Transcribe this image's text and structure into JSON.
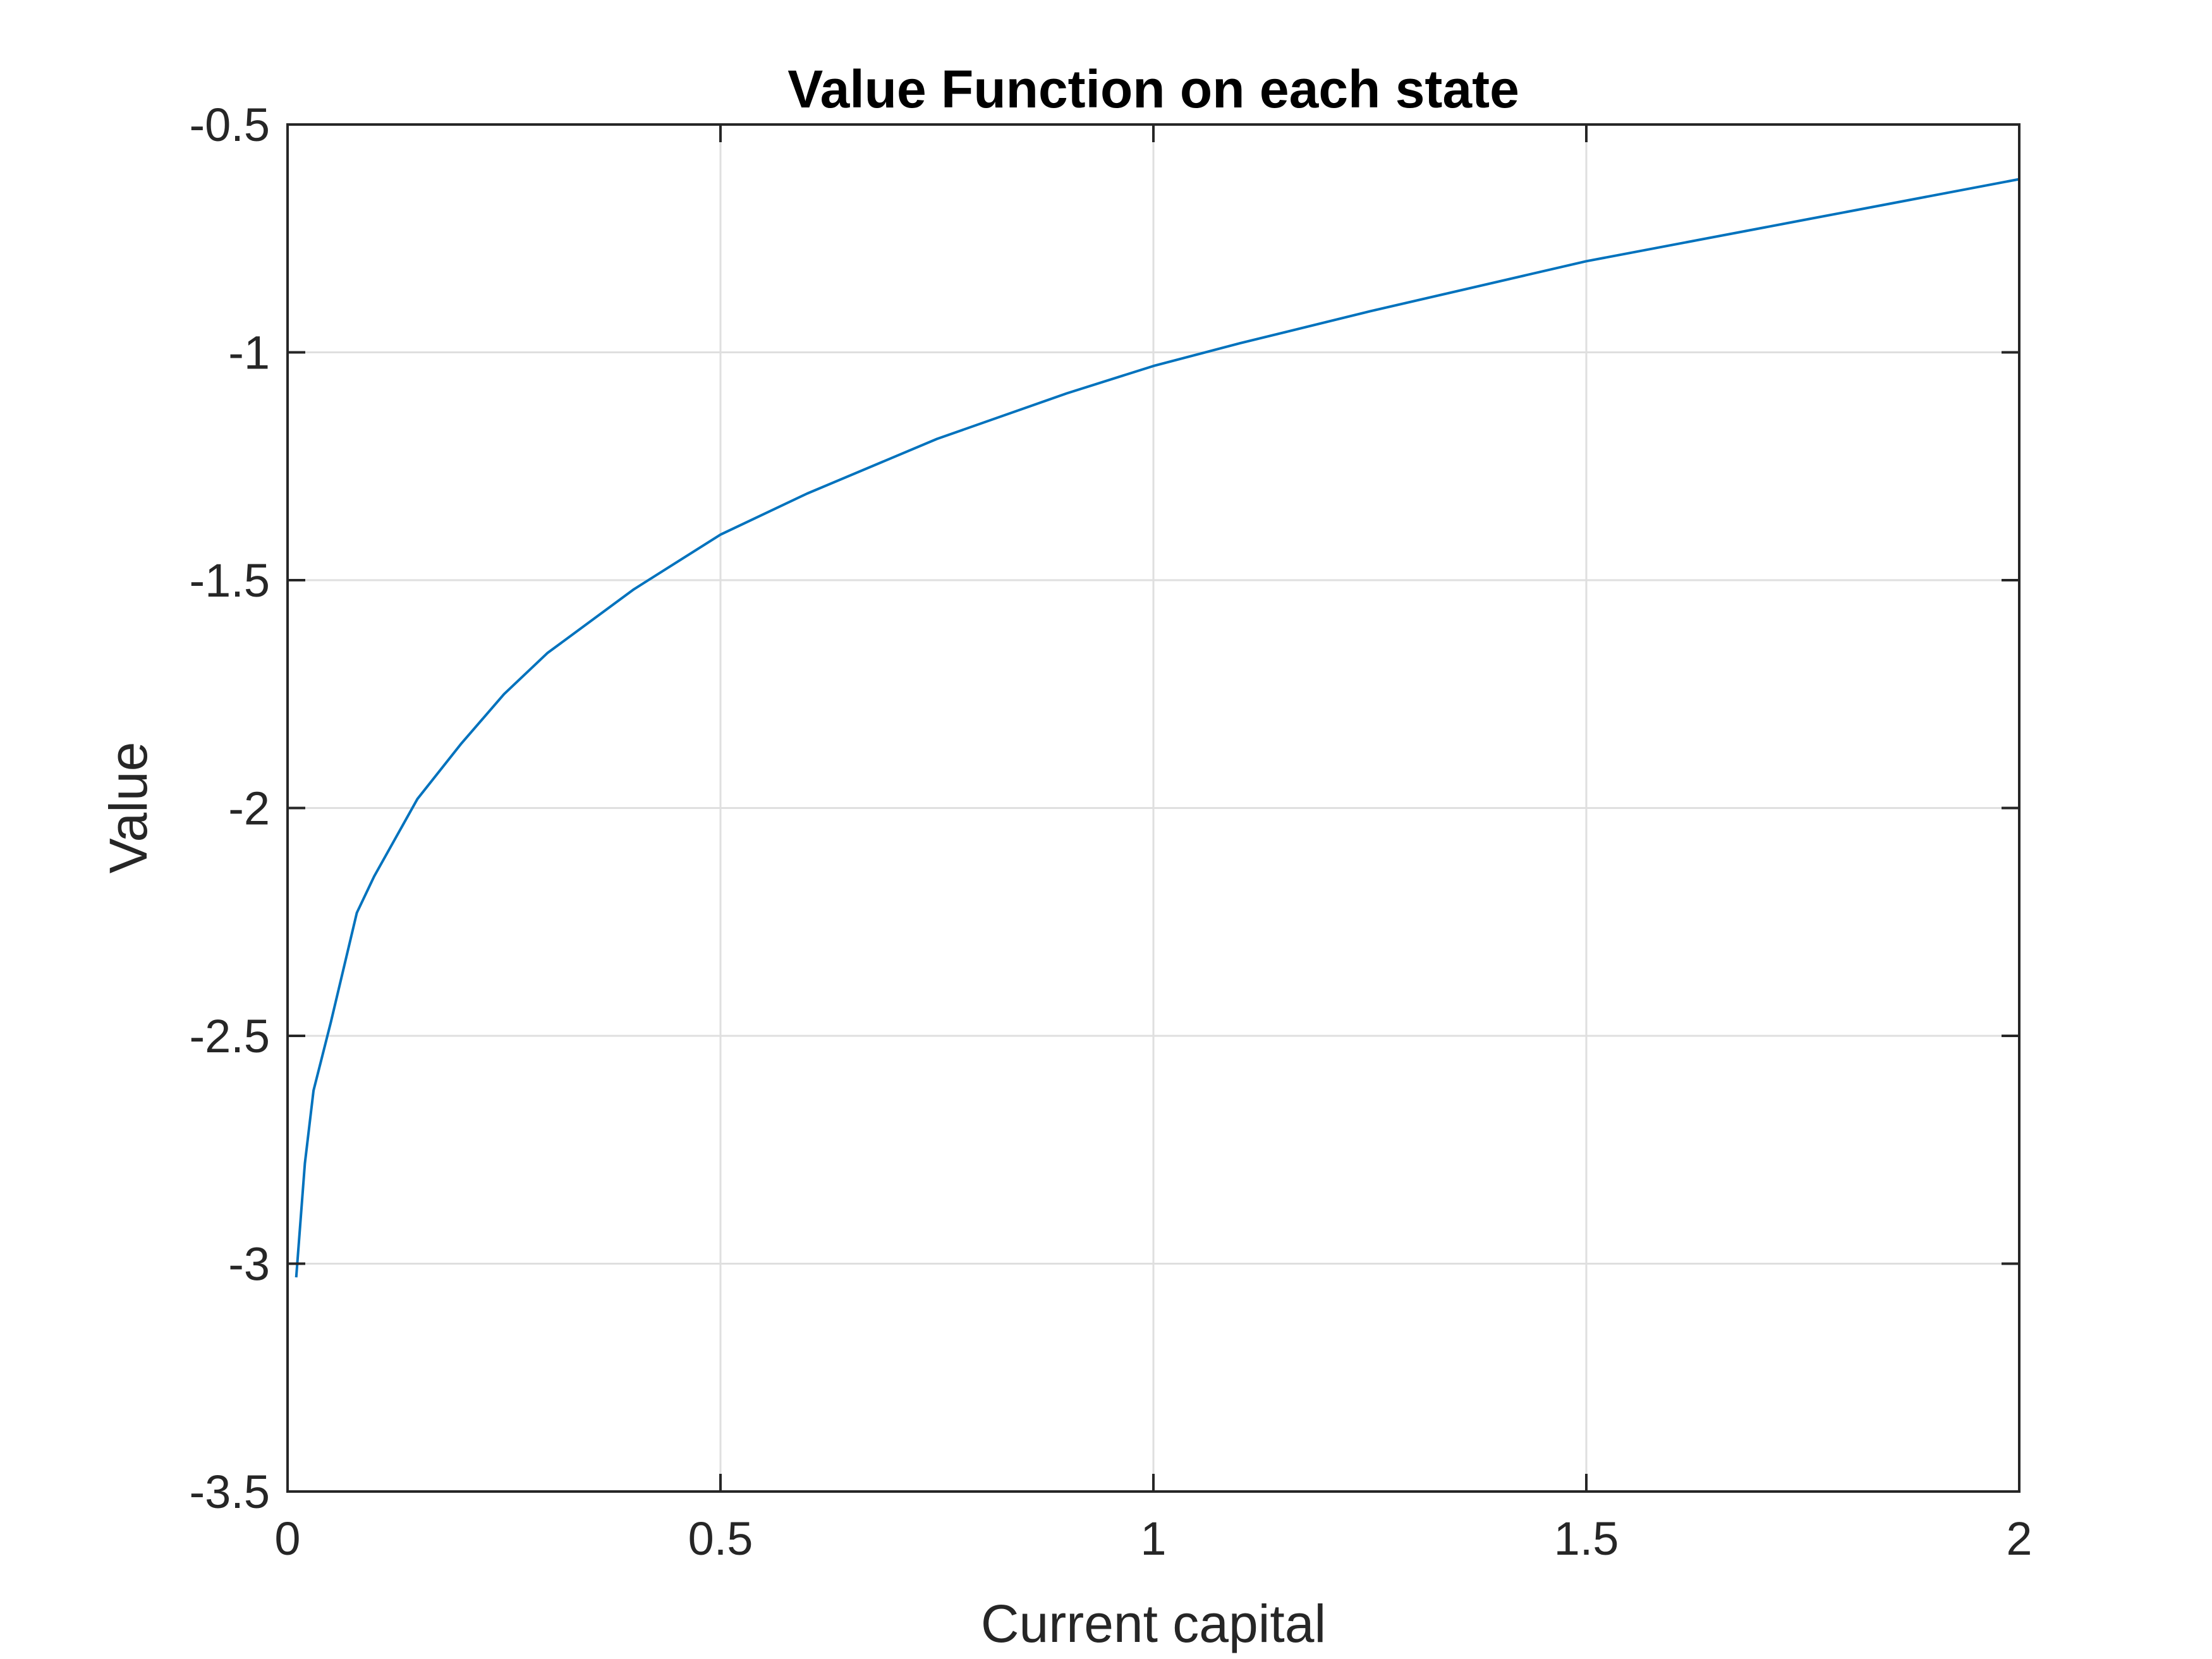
{
  "chart_data": {
    "type": "line",
    "title": "Value Function on each state",
    "xlabel": "Current capital",
    "ylabel": "Value",
    "xlim": [
      0,
      2
    ],
    "ylim": [
      -3.5,
      -0.5
    ],
    "xticks": [
      "0",
      "0.5",
      "1",
      "1.5",
      "2"
    ],
    "yticks": [
      "-0.5",
      "-1",
      "-1.5",
      "-2",
      "-2.5",
      "-3",
      "-3.5"
    ],
    "grid": true,
    "series": [
      {
        "color": "#0072bd",
        "x": [
          0.01,
          0.02,
          0.03,
          0.05,
          0.08,
          0.1,
          0.15,
          0.2,
          0.25,
          0.3,
          0.4,
          0.5,
          0.6,
          0.75,
          0.9,
          1.0,
          1.1,
          1.25,
          1.5,
          1.75,
          2.0
        ],
        "y": [
          -3.03,
          -2.78,
          -2.62,
          -2.47,
          -2.23,
          -2.15,
          -1.98,
          -1.86,
          -1.75,
          -1.66,
          -1.52,
          -1.4,
          -1.31,
          -1.19,
          -1.09,
          -1.03,
          -0.98,
          -0.91,
          -0.8,
          -0.71,
          -0.62
        ]
      }
    ]
  }
}
